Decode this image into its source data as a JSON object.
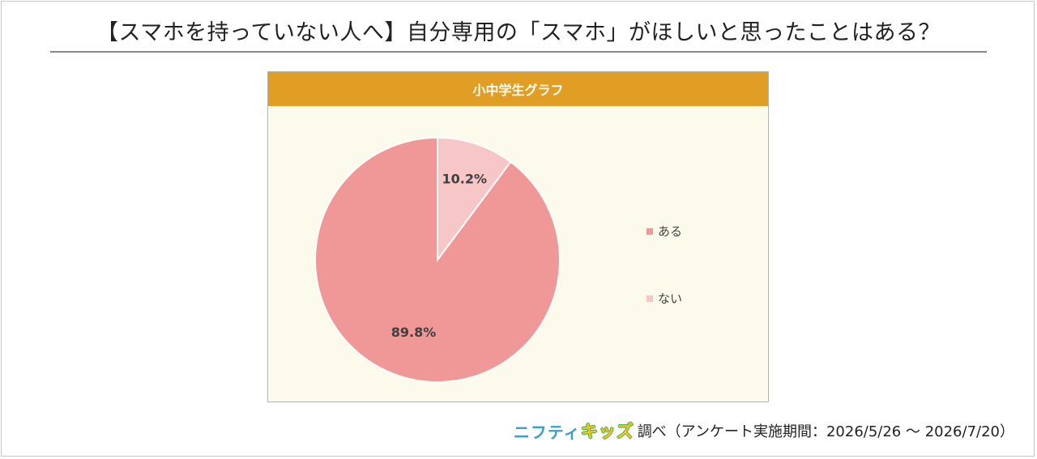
{
  "page": {
    "title": "【スマホを持っていない人へ】自分専用の「スマホ」がほしいと思ったことはある？"
  },
  "chart_data": {
    "type": "pie",
    "title": "小中学生グラフ",
    "categories": [
      "ある",
      "ない"
    ],
    "values": [
      89.8,
      10.2
    ],
    "value_labels": [
      "89.8%",
      "10.2%"
    ],
    "colors": [
      "#f09797",
      "#f7c6c6"
    ],
    "start_angle": "12 o'clock, counterclockwise",
    "legend_position": "right"
  },
  "footer": {
    "brand_part1": "ニフティ",
    "brand_part2": "キッズ",
    "note": "調べ（アンケート実施期間：2026/5/26 ～ 2026/7/20）"
  }
}
